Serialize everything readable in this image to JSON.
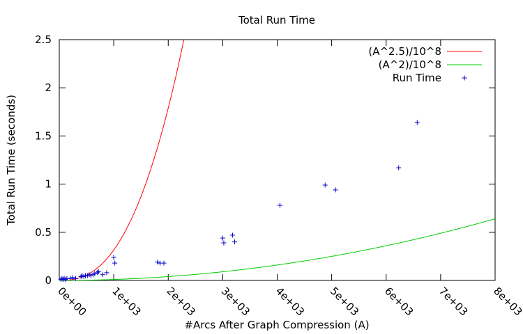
{
  "chart_data": {
    "type": "scatter",
    "title": "Total Run Time",
    "xlabel": "#Arcs After Graph Compression (A)",
    "ylabel": "Total Run Time (seconds)",
    "xlim": [
      0,
      8000
    ],
    "ylim": [
      0,
      2.5
    ],
    "x_ticks": [
      0,
      1000,
      2000,
      3000,
      4000,
      5000,
      6000,
      7000,
      8000
    ],
    "x_tick_labels": [
      "0e+00",
      "1e+03",
      "2e+03",
      "3e+03",
      "4e+03",
      "5e+03",
      "6e+03",
      "7e+03",
      "8e+03"
    ],
    "y_ticks": [
      0,
      0.5,
      1,
      1.5,
      2,
      2.5
    ],
    "y_tick_labels": [
      "0",
      "0.5",
      "1",
      "1.5",
      "2",
      "2.5"
    ],
    "grid": false,
    "legend_position": "top-right",
    "series": [
      {
        "name": "(A^2.5)/10^8",
        "kind": "function",
        "exponent": 2.5,
        "divisor": 100000000,
        "color": "#ff0000"
      },
      {
        "name": "(A^2)/10^8",
        "kind": "function",
        "exponent": 2,
        "divisor": 100000000,
        "color": "#00cc00"
      },
      {
        "name": "Run Time",
        "kind": "points",
        "marker": "+",
        "color": "#0000cc",
        "points": [
          [
            30,
            0.01
          ],
          [
            50,
            0.02
          ],
          [
            70,
            0.01
          ],
          [
            90,
            0.02
          ],
          [
            110,
            0.01
          ],
          [
            140,
            0.02
          ],
          [
            200,
            0.02
          ],
          [
            250,
            0.03
          ],
          [
            300,
            0.02
          ],
          [
            400,
            0.04
          ],
          [
            420,
            0.05
          ],
          [
            450,
            0.04
          ],
          [
            480,
            0.05
          ],
          [
            520,
            0.05
          ],
          [
            550,
            0.06
          ],
          [
            580,
            0.05
          ],
          [
            620,
            0.06
          ],
          [
            650,
            0.07
          ],
          [
            700,
            0.08
          ],
          [
            720,
            0.09
          ],
          [
            800,
            0.06
          ],
          [
            870,
            0.08
          ],
          [
            1000,
            0.24
          ],
          [
            1020,
            0.18
          ],
          [
            1800,
            0.19
          ],
          [
            1850,
            0.18
          ],
          [
            1920,
            0.18
          ],
          [
            3000,
            0.44
          ],
          [
            3020,
            0.39
          ],
          [
            3180,
            0.47
          ],
          [
            3220,
            0.4
          ],
          [
            4050,
            0.78
          ],
          [
            4880,
            0.99
          ],
          [
            5070,
            0.94
          ],
          [
            6230,
            1.17
          ],
          [
            6570,
            1.64
          ]
        ]
      }
    ]
  }
}
